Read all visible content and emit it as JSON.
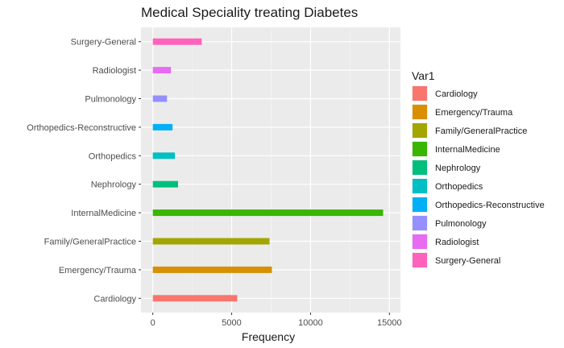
{
  "chart_data": {
    "type": "bar",
    "orientation": "horizontal",
    "title": "Medical Speciality treating Diabetes",
    "xlabel": "Frequency",
    "ylabel": "",
    "xlim": [
      -750,
      15700
    ],
    "x_ticks": [
      0,
      5000,
      10000,
      15000
    ],
    "x_tick_labels": [
      "0",
      "5000",
      "10000",
      "15000"
    ],
    "grid": true,
    "legend_position": "right",
    "legend_title": "Var1",
    "categories": [
      "Cardiology",
      "Emergency/Trauma",
      "Family/GeneralPractice",
      "InternalMedicine",
      "Nephrology",
      "Orthopedics",
      "Orthopedics-Reconstructive",
      "Pulmonology",
      "Radiologist",
      "Surgery-General"
    ],
    "values": [
      5350,
      7550,
      7400,
      14600,
      1600,
      1400,
      1250,
      900,
      1150,
      3100
    ],
    "colors": [
      "#F8766D",
      "#D89000",
      "#A3A500",
      "#39B600",
      "#00BF7D",
      "#00BFC4",
      "#00B0F6",
      "#9590FF",
      "#E76BF3",
      "#FF62BC"
    ]
  }
}
